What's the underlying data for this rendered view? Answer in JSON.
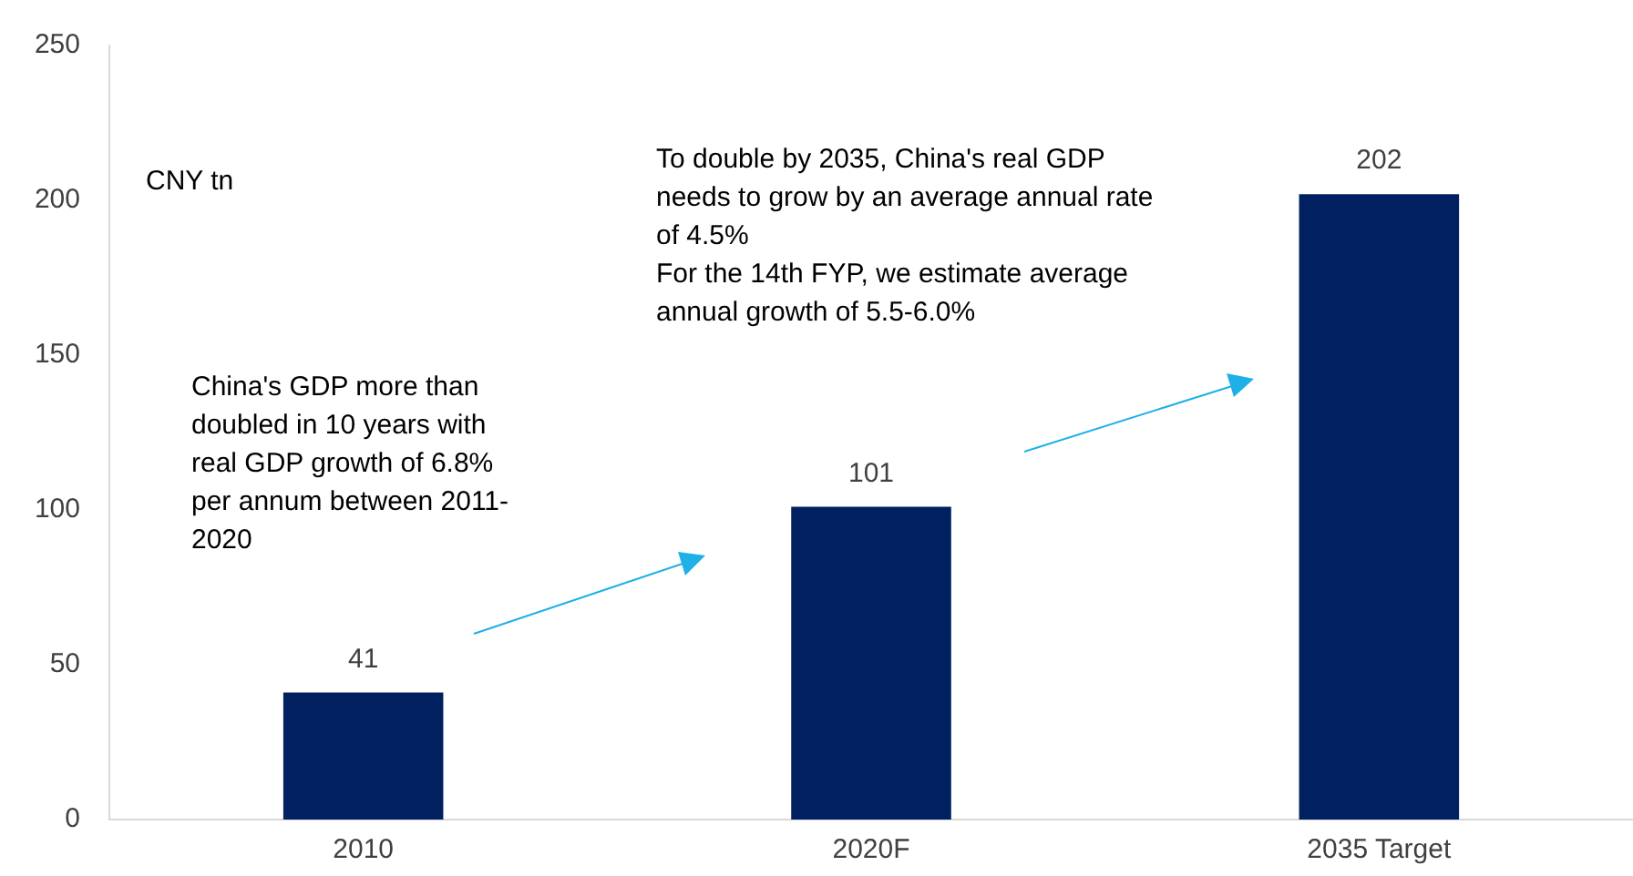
{
  "chart_data": {
    "type": "bar",
    "categories": [
      "2010",
      "2020F",
      "2035 Target"
    ],
    "values": [
      41,
      101,
      202
    ],
    "color": "#002060",
    "ylim": [
      0,
      250
    ],
    "yticks": [
      0,
      50,
      100,
      150,
      200,
      250
    ],
    "grid": false,
    "legend": false,
    "data_labels": true,
    "annotations": [
      "CNY tn",
      "China's GDP more than\ndoubled in 10 years with\nreal GDP growth of 6.8%\nper annum between 2011-\n2020",
      "To double by 2035, China's real GDP\nneeds to grow by an average annual rate\nof 4.5%\nFor the 14th FYP, we estimate average\nannual growth of 5.5-6.0%"
    ]
  }
}
